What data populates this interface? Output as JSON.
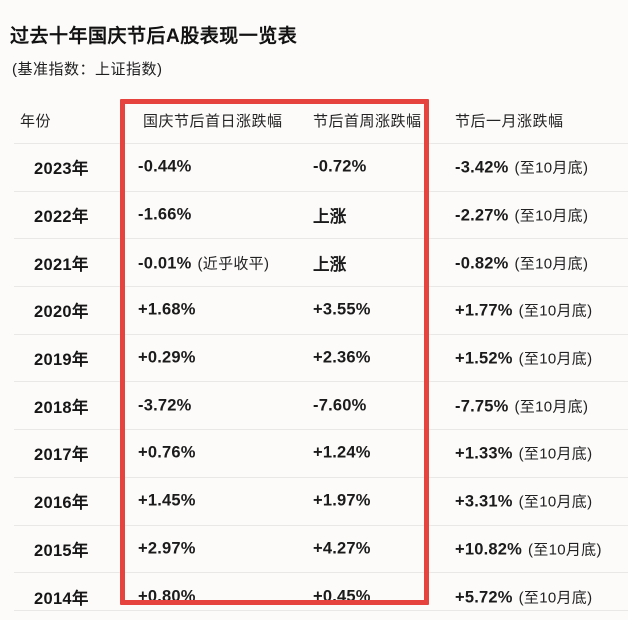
{
  "title": "过去十年国庆节后A股表现一览表",
  "subtitle": "(基准指数：上证指数)",
  "highlight": {
    "color": "#e6423e",
    "purpose": "frames first-day and first-week columns"
  },
  "table": {
    "headers": {
      "year": "年份",
      "day1": "国庆节后首日涨跌幅",
      "week1": "节后首周涨跌幅",
      "month1": "节后一月涨跌幅"
    },
    "rows": [
      {
        "year": "2023年",
        "day1": "-0.44%",
        "day1_note": "",
        "week1": "-0.72%",
        "month1": "-3.42%",
        "month1_note": "(至10月底)"
      },
      {
        "year": "2022年",
        "day1": "-1.66%",
        "day1_note": "",
        "week1": "上涨",
        "month1": "-2.27%",
        "month1_note": "(至10月底)"
      },
      {
        "year": "2021年",
        "day1": "-0.01%",
        "day1_note": "(近乎收平)",
        "week1": "上涨",
        "month1": "-0.82%",
        "month1_note": "(至10月底)"
      },
      {
        "year": "2020年",
        "day1": "+1.68%",
        "day1_note": "",
        "week1": "+3.55%",
        "month1": "+1.77%",
        "month1_note": "(至10月底)"
      },
      {
        "year": "2019年",
        "day1": "+0.29%",
        "day1_note": "",
        "week1": "+2.36%",
        "month1": "+1.52%",
        "month1_note": "(至10月底)"
      },
      {
        "year": "2018年",
        "day1": "-3.72%",
        "day1_note": "",
        "week1": "-7.60%",
        "month1": "-7.75%",
        "month1_note": "(至10月底)"
      },
      {
        "year": "2017年",
        "day1": "+0.76%",
        "day1_note": "",
        "week1": "+1.24%",
        "month1": "+1.33%",
        "month1_note": "(至10月底)"
      },
      {
        "year": "2016年",
        "day1": "+1.45%",
        "day1_note": "",
        "week1": "+1.97%",
        "month1": "+3.31%",
        "month1_note": "(至10月底)"
      },
      {
        "year": "2015年",
        "day1": "+2.97%",
        "day1_note": "",
        "week1": "+4.27%",
        "month1": "+10.82%",
        "month1_note": "(至10月底)"
      },
      {
        "year": "2014年",
        "day1": "+0.80%",
        "day1_note": "",
        "week1": "+0.45%",
        "month1": "+5.72%",
        "month1_note": "(至10月底)"
      }
    ]
  },
  "chart_data": {
    "type": "table",
    "title": "过去十年国庆节后A股表现一览表",
    "subtitle": "(基准指数：上证指数)",
    "columns": [
      "年份",
      "国庆节后首日涨跌幅",
      "节后首周涨跌幅",
      "节后一月涨跌幅"
    ],
    "rows": [
      [
        "2023年",
        "-0.44%",
        "-0.72%",
        "-3.42% (至10月底)"
      ],
      [
        "2022年",
        "-1.66%",
        "上涨",
        "-2.27% (至10月底)"
      ],
      [
        "2021年",
        "-0.01% (近乎收平)",
        "上涨",
        "-0.82% (至10月底)"
      ],
      [
        "2020年",
        "+1.68%",
        "+3.55%",
        "+1.77% (至10月底)"
      ],
      [
        "2019年",
        "+0.29%",
        "+2.36%",
        "+1.52% (至10月底)"
      ],
      [
        "2018年",
        "-3.72%",
        "-7.60%",
        "-7.75% (至10月底)"
      ],
      [
        "2017年",
        "+0.76%",
        "+1.24%",
        "+1.33% (至10月底)"
      ],
      [
        "2016年",
        "+1.45%",
        "+1.97%",
        "+3.31% (至10月底)"
      ],
      [
        "2015年",
        "+2.97%",
        "+4.27%",
        "+10.82% (至10月底)"
      ],
      [
        "2014年",
        "+0.80%",
        "+0.45%",
        "+5.72% (至10月底)"
      ]
    ]
  }
}
